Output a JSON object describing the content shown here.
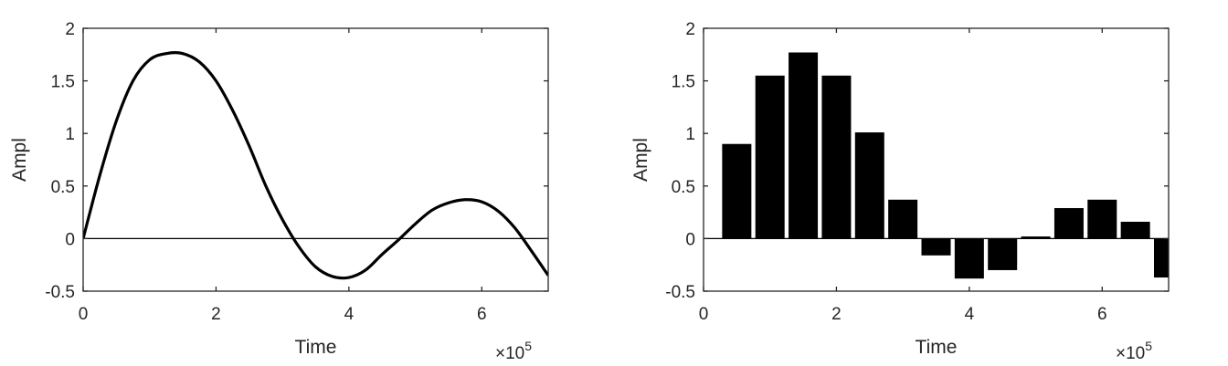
{
  "chart_data": [
    {
      "type": "line",
      "title": "",
      "xlabel": "Time",
      "ylabel": "Ampl",
      "x_multiplier": "×10^5",
      "xlim": [
        0,
        7
      ],
      "ylim": [
        -0.5,
        2
      ],
      "xticks": [
        "0",
        "2",
        "4",
        "6"
      ],
      "yticks": [
        "-0.5",
        "0",
        "0.5",
        "1",
        "1.5",
        "2"
      ],
      "reference_line_y": 0,
      "series": [
        {
          "x": [
            0,
            0.25,
            0.5,
            0.75,
            1.0,
            1.25,
            1.5,
            1.75,
            2.0,
            2.25,
            2.5,
            2.75,
            3.0,
            3.25,
            3.5,
            3.75,
            4.0,
            4.25,
            4.5,
            4.75,
            5.0,
            5.25,
            5.5,
            5.75,
            6.0,
            6.25,
            6.5,
            6.75,
            7.0
          ],
          "y": [
            0,
            0.6,
            1.12,
            1.5,
            1.7,
            1.76,
            1.76,
            1.68,
            1.5,
            1.22,
            0.88,
            0.5,
            0.18,
            -0.08,
            -0.27,
            -0.36,
            -0.37,
            -0.3,
            -0.15,
            -0.01,
            0.14,
            0.27,
            0.34,
            0.37,
            0.35,
            0.26,
            0.1,
            -0.12,
            -0.35
          ]
        }
      ]
    },
    {
      "type": "bar",
      "title": "",
      "xlabel": "Time",
      "ylabel": "Ampl",
      "x_multiplier": "×10^5",
      "xlim": [
        0,
        7
      ],
      "ylim": [
        -0.5,
        2
      ],
      "xticks": [
        "0",
        "2",
        "4",
        "6"
      ],
      "yticks": [
        "-0.5",
        "0",
        "0.5",
        "1",
        "1.5",
        "2"
      ],
      "bar_width": 0.44,
      "x": [
        0.5,
        1.0,
        1.5,
        2.0,
        2.5,
        3.0,
        3.5,
        4.0,
        4.5,
        5.0,
        5.5,
        6.0,
        6.5,
        7.0
      ],
      "values": [
        0.9,
        1.55,
        1.77,
        1.55,
        1.01,
        0.37,
        -0.16,
        -0.38,
        -0.3,
        0.02,
        0.29,
        0.37,
        0.16,
        -0.37
      ]
    }
  ]
}
